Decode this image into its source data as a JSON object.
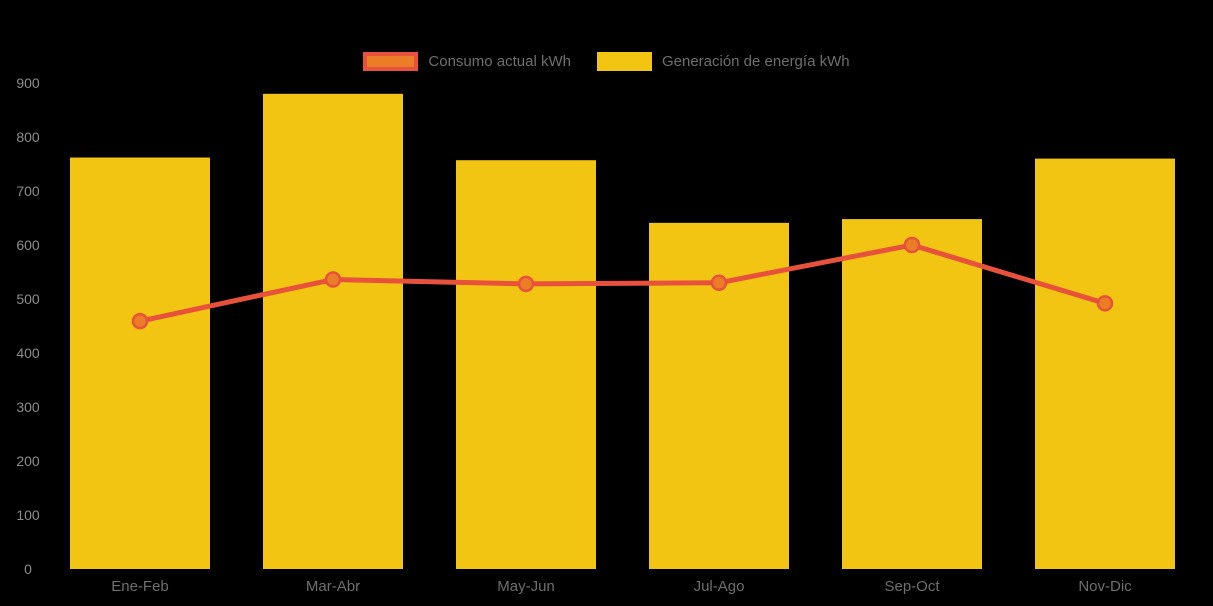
{
  "background_color": "#000000",
  "legend": {
    "items": [
      {
        "label": "Consumo actual kWh",
        "swatch_fill": "#EB7D27",
        "swatch_border": "#E8513C"
      },
      {
        "label": "Generación de energía kWh",
        "swatch_fill": "#F2C512",
        "swatch_border": "#F2C512"
      }
    ]
  },
  "axis": {
    "ytick_color": "#8C8C8C",
    "xtick_color": "#6E6E6E",
    "ytick_font_size": 14,
    "xtick_font_size": 15
  },
  "chart_data": {
    "type": "bar",
    "title": "",
    "xlabel": "",
    "ylabel": "",
    "categories": [
      "Ene-Feb",
      "Mar-Abr",
      "May-Jun",
      "Jul-Ago",
      "Sep-Oct",
      "Nov-Dic"
    ],
    "series": [
      {
        "name": "Generación de energía kWh",
        "type": "bar",
        "color": "#F2C512",
        "values": [
          762,
          880,
          757,
          641,
          648,
          760
        ]
      },
      {
        "name": "Consumo actual kWh",
        "type": "line",
        "color": "#E8513C",
        "marker_fill": "#EB7D27",
        "marker_stroke": "#E8513C",
        "values": [
          459,
          536,
          528,
          530,
          600,
          492
        ]
      }
    ],
    "ylim": [
      0,
      900
    ],
    "yticks": [
      0,
      100,
      200,
      300,
      400,
      500,
      600,
      700,
      800,
      900
    ],
    "grid": false,
    "legend_position": "top"
  }
}
